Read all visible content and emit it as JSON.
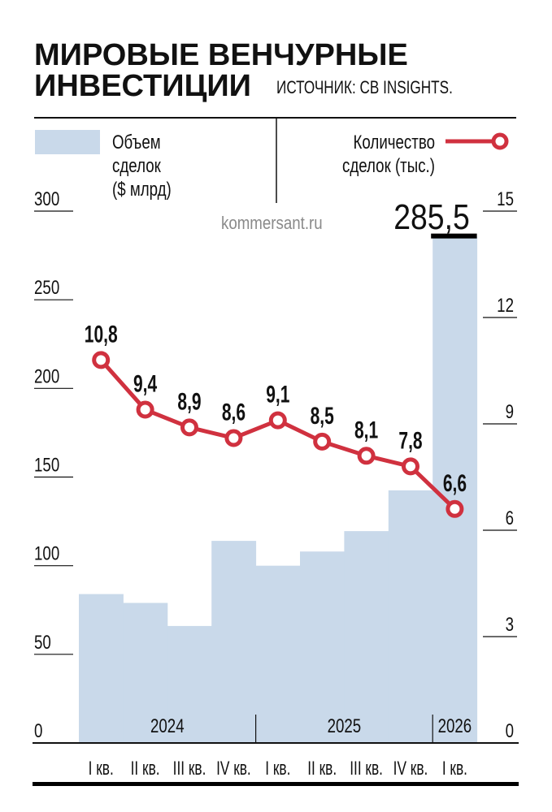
{
  "title_line1": "МИРОВЫЕ ВЕНЧУРНЫЕ",
  "title_line2": "ИНВЕСТИЦИИ",
  "source": "ИСТОЧНИК: CB INSIGHTS.",
  "watermark": "kommersant.ru",
  "chart_data": {
    "type": "bar+line",
    "categories": [
      "I кв.",
      "II кв.",
      "III кв.",
      "IV кв.",
      "I кв.",
      "II кв.",
      "III кв.",
      "IV кв.",
      "I кв."
    ],
    "years": [
      {
        "label": "2024",
        "span": 4
      },
      {
        "label": "2025",
        "span": 4
      },
      {
        "label": "2026",
        "span": 1
      }
    ],
    "series": [
      {
        "name": "Объем сделок ($ млрд)",
        "legend_lines": [
          "Объем",
          "сделок",
          "($ млрд)"
        ],
        "type": "bar",
        "axis": "left",
        "color": "#c9d9ea",
        "values": [
          84,
          79,
          66,
          114,
          100,
          108,
          119.5,
          142.5,
          285.5
        ],
        "highlight_label": "285,5"
      },
      {
        "name": "Количество сделок (тыс.)",
        "legend_lines": [
          "Количество",
          "сделок (тыс.)"
        ],
        "type": "line",
        "axis": "right",
        "color": "#d0313f",
        "values": [
          10.8,
          9.4,
          8.9,
          8.6,
          9.1,
          8.5,
          8.1,
          7.8,
          6.6
        ],
        "labels": [
          "10,8",
          "9,4",
          "8,9",
          "8,6",
          "9,1",
          "8,5",
          "8,1",
          "7,8",
          "6,6"
        ]
      }
    ],
    "left_axis": {
      "ylim": [
        0,
        300
      ],
      "ticks": [
        "0",
        "50",
        "100",
        "150",
        "200",
        "250",
        "300"
      ]
    },
    "right_axis": {
      "ylim": [
        0,
        15
      ],
      "ticks": [
        "0",
        "3",
        "6",
        "9",
        "12",
        "15"
      ]
    },
    "grid": false,
    "legend_placement": "top"
  }
}
